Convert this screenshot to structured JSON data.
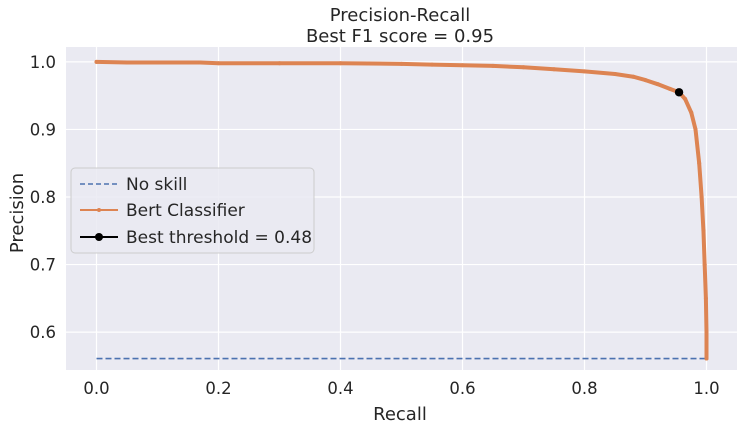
{
  "chart_data": {
    "type": "line",
    "title": "Precision-Recall",
    "subtitle": "Best F1 score = 0.95",
    "xlabel": "Recall",
    "ylabel": "Precision",
    "xlim": [
      -0.05,
      1.05
    ],
    "ylim": [
      0.544,
      1.022
    ],
    "x_ticks": [
      0.0,
      0.2,
      0.4,
      0.6,
      0.8,
      1.0
    ],
    "x_tick_labels": [
      "0.0",
      "0.2",
      "0.4",
      "0.6",
      "0.8",
      "1.0"
    ],
    "y_ticks": [
      0.6,
      0.7,
      0.8,
      0.9,
      1.0
    ],
    "y_tick_labels": [
      "0.6",
      "0.7",
      "0.8",
      "0.9",
      "1.0"
    ],
    "grid": true,
    "legend_position": "center-left",
    "series": [
      {
        "name": "No skill",
        "style": "dashed",
        "color": "#4c72b0",
        "x": [
          0.0,
          1.0
        ],
        "y": [
          0.561,
          0.561
        ]
      },
      {
        "name": "Bert Classifier",
        "style": "solid-with-markers",
        "color": "#dd8452",
        "x": [
          0.0,
          0.05,
          0.1,
          0.15,
          0.17,
          0.2,
          0.3,
          0.4,
          0.5,
          0.55,
          0.6,
          0.65,
          0.7,
          0.75,
          0.8,
          0.85,
          0.88,
          0.9,
          0.92,
          0.94,
          0.955,
          0.965,
          0.975,
          0.982,
          0.988,
          0.992,
          0.995,
          0.997,
          0.999,
          1.0,
          1.0
        ],
        "y": [
          1.0,
          0.999,
          0.999,
          0.999,
          0.999,
          0.998,
          0.998,
          0.998,
          0.997,
          0.996,
          0.995,
          0.994,
          0.992,
          0.989,
          0.986,
          0.982,
          0.978,
          0.973,
          0.967,
          0.96,
          0.955,
          0.945,
          0.925,
          0.9,
          0.85,
          0.8,
          0.75,
          0.7,
          0.65,
          0.6,
          0.561
        ]
      },
      {
        "name": "Best threshold = 0.48",
        "style": "marker",
        "color": "#000000",
        "x": [
          0.955
        ],
        "y": [
          0.955
        ]
      }
    ]
  }
}
